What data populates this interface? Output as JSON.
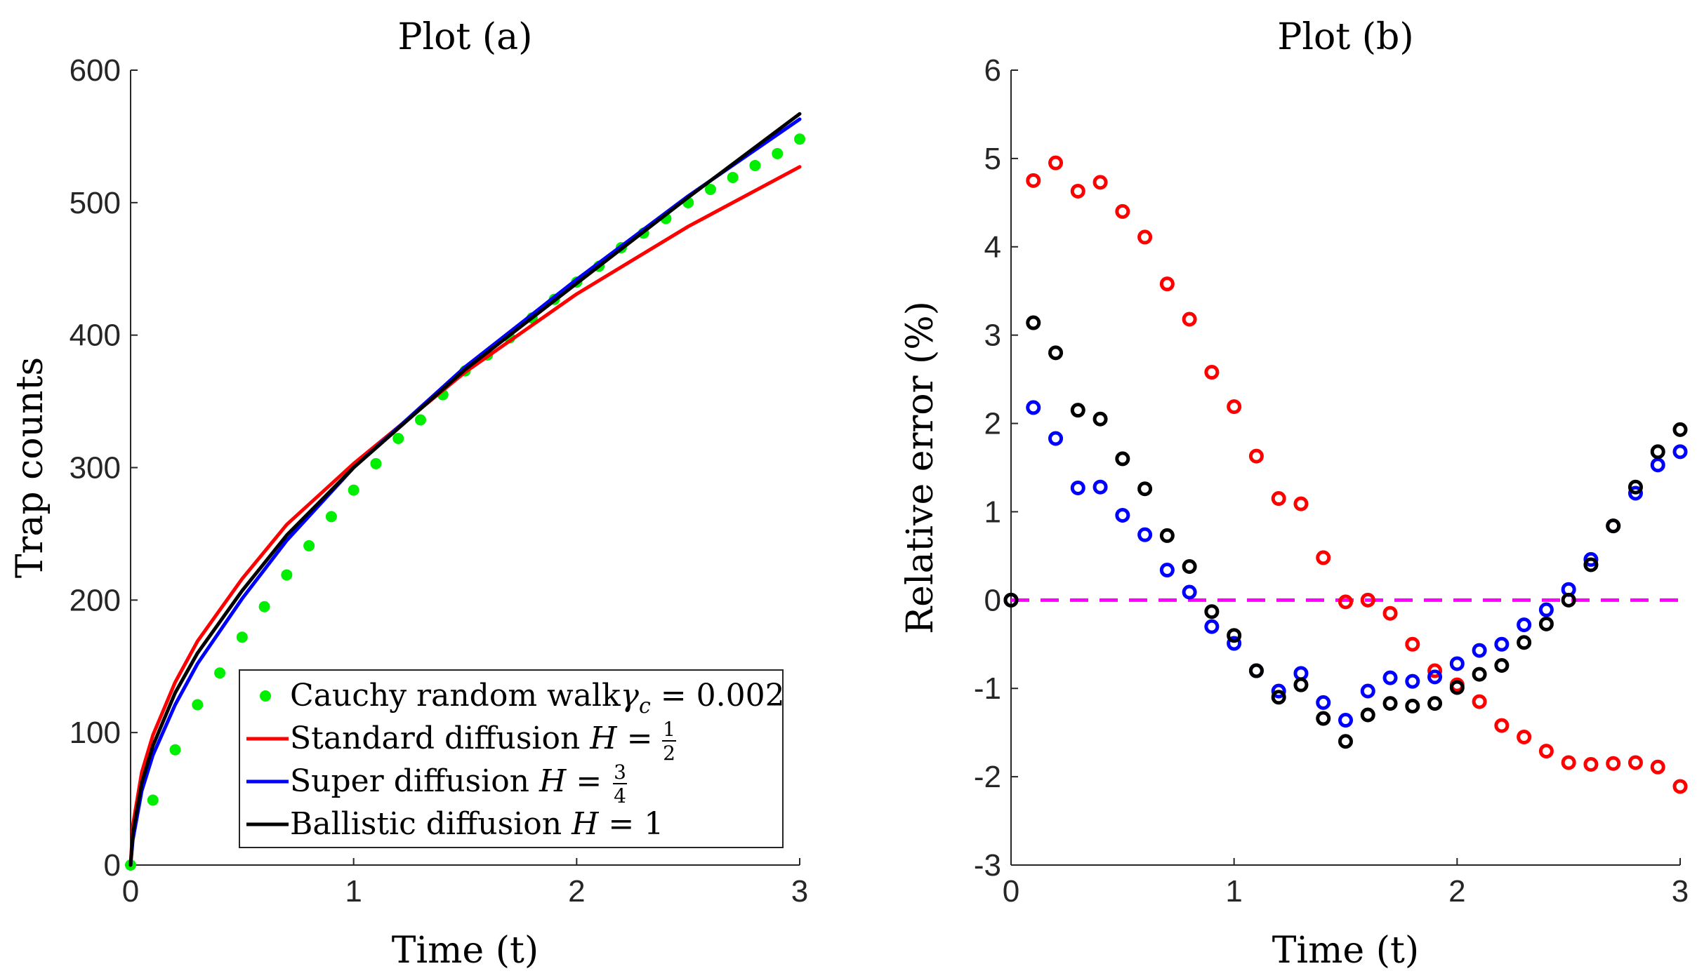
{
  "chart_data": [
    {
      "type": "line",
      "title": "Plot (a)",
      "xlabel": "Time (t)",
      "ylabel": "Trap counts",
      "xlim": [
        0,
        3
      ],
      "ylim": [
        0,
        600
      ],
      "xticks": [
        "0",
        "1",
        "2",
        "3"
      ],
      "yticks": [
        "0",
        "100",
        "200",
        "300",
        "400",
        "500",
        "600"
      ],
      "grid": false,
      "legend_position": "bottom-right",
      "legend": [
        {
          "label": "Cauchy random walk",
          "math": "γ",
          "sub": "c",
          "rhs": " = 0.002",
          "color": "#00ee00",
          "style": "dots"
        },
        {
          "label": "Standard diffusion ",
          "math": "H",
          "rhs": " = ",
          "frac_num": "1",
          "frac_den": "2",
          "color": "#ff0000",
          "style": "line"
        },
        {
          "label": "Super diffusion ",
          "math": "H",
          "rhs": " = ",
          "frac_num": "3",
          "frac_den": "4",
          "color": "#0000ff",
          "style": "line"
        },
        {
          "label": "Ballistic diffusion ",
          "math": "H",
          "rhs": " = 1",
          "color": "#000000",
          "style": "line"
        }
      ],
      "series": [
        {
          "name": "Cauchy random walk",
          "kind": "scatter",
          "color": "#00ee00",
          "x": [
            0,
            0.1,
            0.2,
            0.3,
            0.4,
            0.5,
            0.6,
            0.7,
            0.8,
            0.9,
            1.0,
            1.1,
            1.2,
            1.3,
            1.4,
            1.5,
            1.6,
            1.7,
            1.8,
            1.9,
            2.0,
            2.1,
            2.2,
            2.3,
            2.4,
            2.5,
            2.6,
            2.7,
            2.8,
            2.9,
            3.0
          ],
          "y": [
            0,
            49,
            87,
            121,
            145,
            172,
            195,
            219,
            241,
            263,
            283,
            303,
            322,
            336,
            355,
            373,
            385,
            398,
            413,
            427,
            440,
            452,
            466,
            477,
            488,
            500,
            510,
            519,
            528,
            537,
            548
          ]
        },
        {
          "name": "Standard diffusion",
          "kind": "line",
          "color": "#ff0000",
          "x": [
            0,
            0.01,
            0.05,
            0.1,
            0.2,
            0.3,
            0.5,
            0.7,
            1.0,
            1.5,
            2.0,
            2.5,
            3.0
          ],
          "y": [
            0,
            30,
            70,
            98,
            138,
            169,
            216,
            257,
            303,
            372,
            431,
            482,
            527
          ]
        },
        {
          "name": "Super diffusion",
          "kind": "line",
          "color": "#0000ff",
          "x": [
            0,
            0.01,
            0.05,
            0.1,
            0.2,
            0.3,
            0.5,
            0.7,
            1.0,
            1.5,
            2.0,
            2.5,
            3.0
          ],
          "y": [
            0,
            19,
            56,
            83,
            121,
            152,
            201,
            245,
            300,
            376,
            442,
            505,
            563
          ]
        },
        {
          "name": "Ballistic diffusion",
          "kind": "line",
          "color": "#000000",
          "x": [
            0,
            0.01,
            0.05,
            0.1,
            0.2,
            0.3,
            0.5,
            0.7,
            1.0,
            1.5,
            2.0,
            2.5,
            3.0
          ],
          "y": [
            0,
            24,
            62,
            90,
            130,
            160,
            207,
            249,
            300,
            374,
            439,
            504,
            567
          ]
        }
      ]
    },
    {
      "type": "scatter",
      "title": "Plot (b)",
      "xlabel": "Time (t)",
      "ylabel": "Relative error (%)",
      "xlim": [
        0,
        3
      ],
      "ylim": [
        -3,
        6
      ],
      "xticks": [
        "0",
        "1",
        "2",
        "3"
      ],
      "yticks": [
        "-3",
        "-2",
        "-1",
        "0",
        "1",
        "2",
        "3",
        "4",
        "5",
        "6"
      ],
      "grid": false,
      "reference_line": {
        "y": 0,
        "color": "#ff00ff",
        "style": "dashed"
      },
      "series": [
        {
          "name": "Standard diffusion",
          "color": "#ff0000",
          "x": [
            0,
            0.1,
            0.2,
            0.3,
            0.4,
            0.5,
            0.6,
            0.7,
            0.8,
            0.9,
            1.0,
            1.1,
            1.2,
            1.3,
            1.4,
            1.5,
            1.6,
            1.7,
            1.8,
            1.9,
            2.0,
            2.1,
            2.2,
            2.3,
            2.4,
            2.5,
            2.6,
            2.7,
            2.8,
            2.9,
            3.0
          ],
          "y": [
            0,
            4.75,
            4.95,
            4.63,
            4.73,
            4.4,
            4.11,
            3.58,
            3.18,
            2.58,
            2.19,
            1.63,
            1.15,
            1.09,
            0.48,
            -0.02,
            0.0,
            -0.15,
            -0.5,
            -0.8,
            -0.96,
            -1.15,
            -1.42,
            -1.55,
            -1.71,
            -1.84,
            -1.86,
            -1.85,
            -1.84,
            -1.89,
            -2.11
          ]
        },
        {
          "name": "Super diffusion",
          "color": "#0000ff",
          "x": [
            0,
            0.1,
            0.2,
            0.3,
            0.4,
            0.5,
            0.6,
            0.7,
            0.8,
            0.9,
            1.0,
            1.1,
            1.2,
            1.3,
            1.4,
            1.5,
            1.6,
            1.7,
            1.8,
            1.9,
            2.0,
            2.1,
            2.2,
            2.3,
            2.4,
            2.5,
            2.6,
            2.7,
            2.8,
            2.9,
            3.0
          ],
          "y": [
            0,
            2.18,
            1.83,
            1.27,
            1.28,
            0.96,
            0.74,
            0.34,
            0.09,
            -0.3,
            -0.49,
            -0.8,
            -1.03,
            -0.83,
            -1.16,
            -1.36,
            -1.03,
            -0.88,
            -0.92,
            -0.87,
            -0.72,
            -0.57,
            -0.5,
            -0.28,
            -0.11,
            0.12,
            0.46,
            0.84,
            1.21,
            1.53,
            1.68
          ]
        },
        {
          "name": "Ballistic diffusion",
          "color": "#000000",
          "x": [
            0,
            0.1,
            0.2,
            0.3,
            0.4,
            0.5,
            0.6,
            0.7,
            0.8,
            0.9,
            1.0,
            1.1,
            1.2,
            1.3,
            1.4,
            1.5,
            1.6,
            1.7,
            1.8,
            1.9,
            2.0,
            2.1,
            2.2,
            2.3,
            2.4,
            2.5,
            2.6,
            2.7,
            2.8,
            2.9,
            3.0
          ],
          "y": [
            0,
            3.14,
            2.8,
            2.15,
            2.05,
            1.6,
            1.26,
            0.73,
            0.38,
            -0.13,
            -0.4,
            -0.8,
            -1.1,
            -0.96,
            -1.34,
            -1.6,
            -1.3,
            -1.17,
            -1.2,
            -1.17,
            -0.99,
            -0.84,
            -0.74,
            -0.48,
            -0.27,
            0.0,
            0.4,
            0.84,
            1.28,
            1.68,
            1.93
          ]
        }
      ]
    }
  ]
}
